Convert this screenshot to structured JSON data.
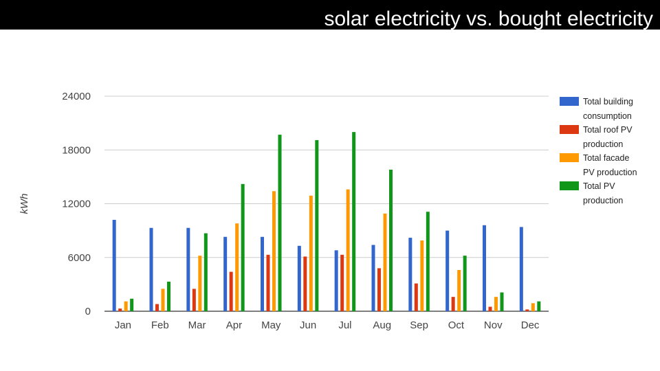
{
  "header": {
    "title": "solar electricity vs. bought electricity"
  },
  "chart_data": {
    "type": "bar",
    "title": "",
    "xlabel": "",
    "ylabel": "kWh",
    "ylim": [
      0,
      24000
    ],
    "yticks": [
      0,
      6000,
      12000,
      18000,
      24000
    ],
    "grid": true,
    "legend_position": "right",
    "categories": [
      "Jan",
      "Feb",
      "Mar",
      "Apr",
      "May",
      "Jun",
      "Jul",
      "Aug",
      "Sep",
      "Oct",
      "Nov",
      "Dec"
    ],
    "series": [
      {
        "name": "Total building consumption",
        "legend_lines": [
          "Total building",
          "consumption"
        ],
        "color": "#3366cc",
        "values": [
          10200,
          9300,
          9300,
          8300,
          8300,
          7300,
          6800,
          7400,
          8200,
          9000,
          9600,
          9400
        ]
      },
      {
        "name": "Total roof PV production",
        "legend_lines": [
          "Total roof PV",
          "production"
        ],
        "color": "#dc3912",
        "values": [
          300,
          800,
          2500,
          4400,
          6300,
          6100,
          6300,
          4800,
          3100,
          1600,
          500,
          200
        ]
      },
      {
        "name": "Total facade PV production",
        "legend_lines": [
          "Total facade",
          "PV production"
        ],
        "color": "#ff9900",
        "values": [
          1100,
          2500,
          6200,
          9800,
          13400,
          12900,
          13600,
          10900,
          7900,
          4600,
          1600,
          900
        ]
      },
      {
        "name": "Total PV production",
        "legend_lines": [
          "Total PV",
          "production"
        ],
        "color": "#109618",
        "values": [
          1400,
          3300,
          8700,
          14200,
          19700,
          19100,
          20000,
          15800,
          11100,
          6200,
          2100,
          1100
        ]
      }
    ]
  }
}
